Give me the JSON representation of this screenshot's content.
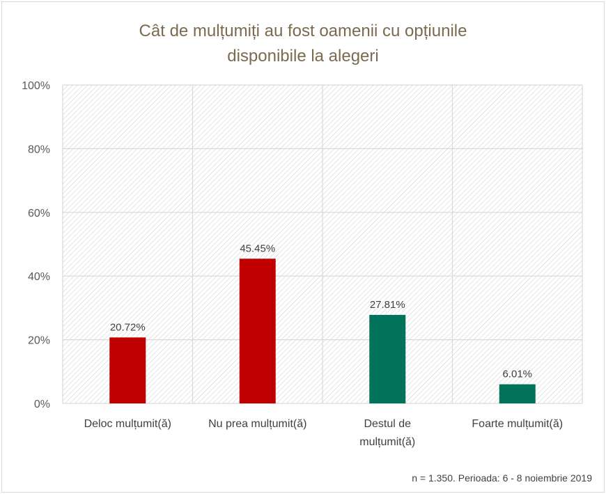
{
  "chart_data": {
    "type": "bar",
    "title": [
      "Cât de mulțumiți au fost oamenii cu opțiunile",
      "disponibile la alegeri"
    ],
    "categories": [
      [
        "Deloc mulțumit(ă)"
      ],
      [
        "Nu prea mulțumit(ă)"
      ],
      [
        "Destul de",
        "mulțumit(ă)"
      ],
      [
        "Foarte mulțumit(ă)"
      ]
    ],
    "values": [
      20.72,
      45.45,
      27.81,
      6.01
    ],
    "data_labels": [
      "20.72%",
      "45.45%",
      "27.81%",
      "6.01%"
    ],
    "colors": [
      "#c00000",
      "#c00000",
      "#00735a",
      "#00735a"
    ],
    "ylim": [
      0,
      100
    ],
    "yticks": [
      0,
      20,
      40,
      60,
      80,
      100
    ],
    "ytick_labels": [
      "0%",
      "20%",
      "40%",
      "60%",
      "80%",
      "100%"
    ],
    "grid": true,
    "xlabel": "",
    "ylabel": "",
    "note": "n = 1.350. Perioada: 6 - 8 noiembrie 2019"
  }
}
